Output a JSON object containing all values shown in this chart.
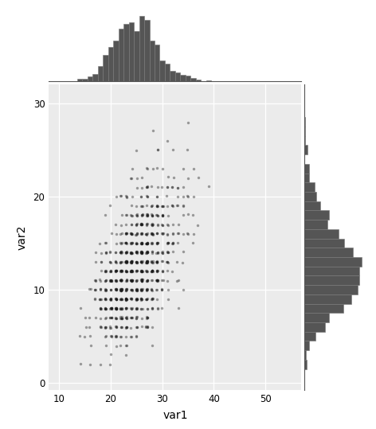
{
  "title": "",
  "xlabel": "var1",
  "ylabel": "var2",
  "scatter_alpha": 0.4,
  "scatter_color": "#1a1a1a",
  "scatter_size": 6,
  "hist_color": "#555555",
  "hist_edgecolor": "#777777",
  "bg_color": "#EBEBEB",
  "fig_bg": "#FFFFFF",
  "grid_color": "#FFFFFF",
  "xlim": [
    8,
    57
  ],
  "ylim": [
    -0.8,
    32
  ],
  "x_ticks": [
    10,
    20,
    30,
    40,
    50
  ],
  "y_ticks": [
    0,
    10,
    20,
    30
  ],
  "seed": 42,
  "n_points": 1000
}
